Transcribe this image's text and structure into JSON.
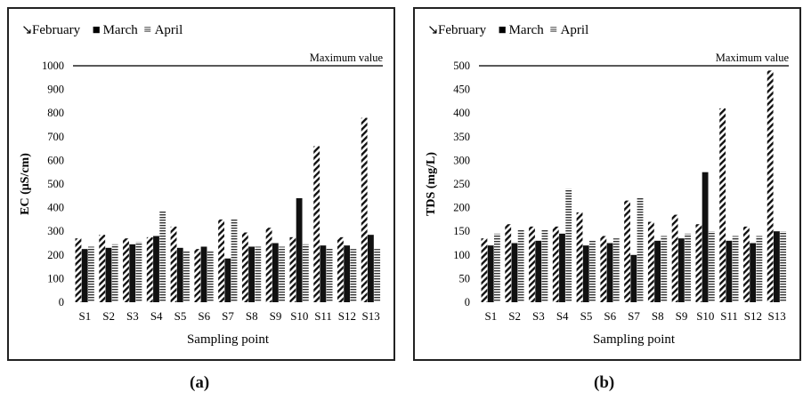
{
  "captions": [
    "(a)",
    "(b)"
  ],
  "colors": {
    "axis": "#222222",
    "bar": "#111111",
    "background": "#ffffff"
  },
  "chart_data": [
    {
      "type": "bar",
      "title": "",
      "xlabel": "Sampling point",
      "ylabel": "EC (μS/cm)",
      "ylim": [
        0,
        1000
      ],
      "yticks": [
        0,
        100,
        200,
        300,
        400,
        500,
        600,
        700,
        800,
        900,
        1000
      ],
      "categories": [
        "S1",
        "S2",
        "S3",
        "S4",
        "S5",
        "S6",
        "S7",
        "S8",
        "S9",
        "S10",
        "S11",
        "S12",
        "S13"
      ],
      "series": [
        {
          "name": "February",
          "pattern": "diagonal-stripes",
          "values": [
            270,
            285,
            270,
            275,
            320,
            225,
            350,
            295,
            315,
            275,
            660,
            275,
            780
          ]
        },
        {
          "name": "March",
          "pattern": "solid",
          "values": [
            225,
            230,
            245,
            280,
            230,
            235,
            185,
            235,
            250,
            440,
            240,
            240,
            285
          ]
        },
        {
          "name": "April",
          "pattern": "horizontal-stripes",
          "values": [
            235,
            245,
            255,
            385,
            215,
            215,
            355,
            235,
            235,
            245,
            230,
            225,
            225
          ]
        }
      ],
      "reference_line": {
        "value": 1000,
        "label": "Maximum value"
      },
      "legend_position": "top-left",
      "grid": false
    },
    {
      "type": "bar",
      "title": "",
      "xlabel": "Sampling point",
      "ylabel": "TDS (mg/L)",
      "ylim": [
        0,
        500
      ],
      "yticks": [
        0,
        50,
        100,
        150,
        200,
        250,
        300,
        350,
        400,
        450,
        500
      ],
      "categories": [
        "S1",
        "S2",
        "S3",
        "S4",
        "S5",
        "S6",
        "S7",
        "S8",
        "S9",
        "S10",
        "S11",
        "S12",
        "S13"
      ],
      "series": [
        {
          "name": "February",
          "pattern": "diagonal-stripes",
          "values": [
            135,
            165,
            160,
            160,
            190,
            140,
            215,
            170,
            185,
            165,
            410,
            160,
            490
          ]
        },
        {
          "name": "March",
          "pattern": "solid",
          "values": [
            120,
            125,
            130,
            145,
            120,
            125,
            100,
            130,
            135,
            275,
            130,
            125,
            150
          ]
        },
        {
          "name": "April",
          "pattern": "horizontal-stripes",
          "values": [
            145,
            155,
            155,
            240,
            130,
            135,
            220,
            140,
            145,
            150,
            140,
            140,
            150
          ]
        }
      ],
      "reference_line": {
        "value": 500,
        "label": "Maximum value"
      },
      "legend_position": "top-left",
      "grid": false
    }
  ]
}
